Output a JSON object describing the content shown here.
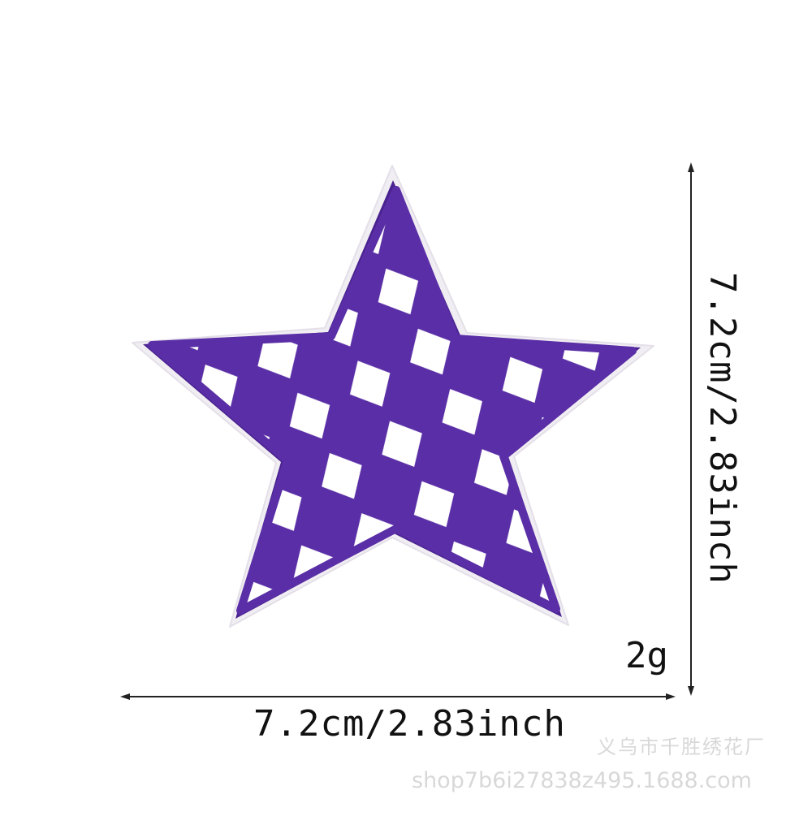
{
  "product": {
    "name": "purple-checkered-star-embroidered-patch",
    "colors": {
      "purple": "#5a2ea6",
      "purple_dark": "#4a2390",
      "white": "#ffffff",
      "backing": "#f1eef3"
    }
  },
  "dimensions": {
    "width_label": "7.2cm/2.83inch",
    "height_label": "7.2cm/2.83inch",
    "weight_label": "2g"
  },
  "watermark": {
    "line1": "义乌市千胜绣花厂",
    "line2": "shop7b6i27838z495.1688.com"
  }
}
